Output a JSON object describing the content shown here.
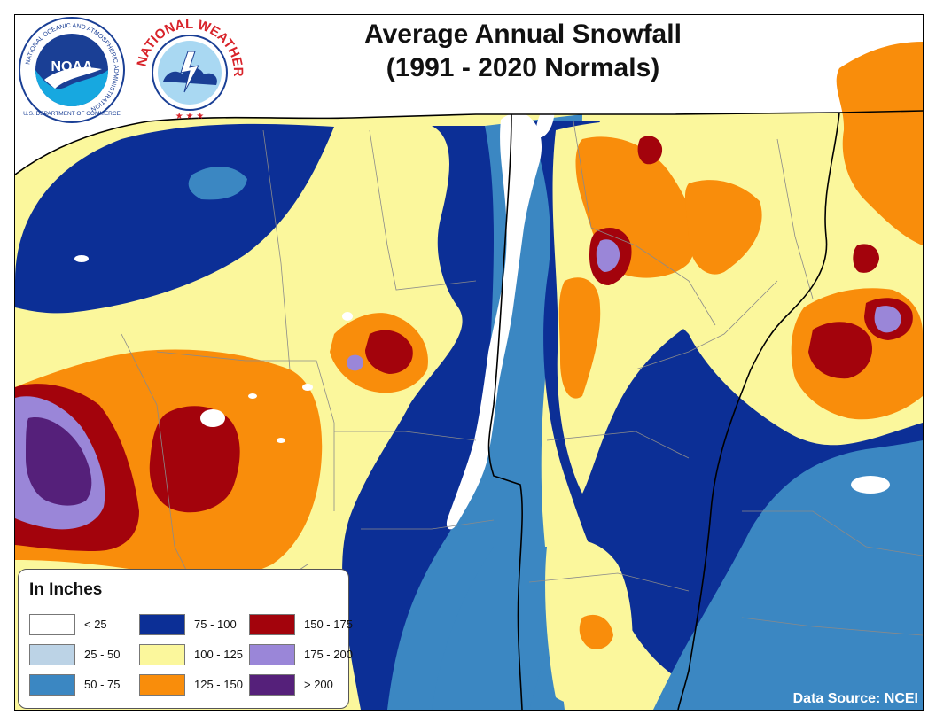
{
  "title": {
    "line1": "Average Annual Snowfall",
    "line2": "(1991 - 2020 Normals)"
  },
  "legend": {
    "title": "In Inches",
    "items": [
      {
        "label": "< 25",
        "color": "#ffffff"
      },
      {
        "label": "25 - 50",
        "color": "#bcd3e6"
      },
      {
        "label": "50 - 75",
        "color": "#3b87c2"
      },
      {
        "label": "75 - 100",
        "color": "#0c2f96"
      },
      {
        "label": "100 - 125",
        "color": "#fbf79c"
      },
      {
        "label": "125 - 150",
        "color": "#f98d0b"
      },
      {
        "label": "150 - 175",
        "color": "#a3030c"
      },
      {
        "label": "175 - 200",
        "color": "#9a86d8"
      },
      {
        "label": "> 200",
        "color": "#55207a"
      }
    ]
  },
  "source": "Data Source: NCEI",
  "logos": {
    "noaa": {
      "center_text": "NOAA",
      "ring_text": "NATIONAL OCEANIC AND ATMOSPHERIC ADMINISTRATION",
      "ring_text_bottom": "U.S. DEPARTMENT OF COMMERCE"
    },
    "nws": {
      "ring_text": "NATIONAL WEATHER SERVICE"
    }
  },
  "colors": {
    "lake": "#ffffff",
    "border": "#000000",
    "county_line": "#8a8a8a"
  }
}
